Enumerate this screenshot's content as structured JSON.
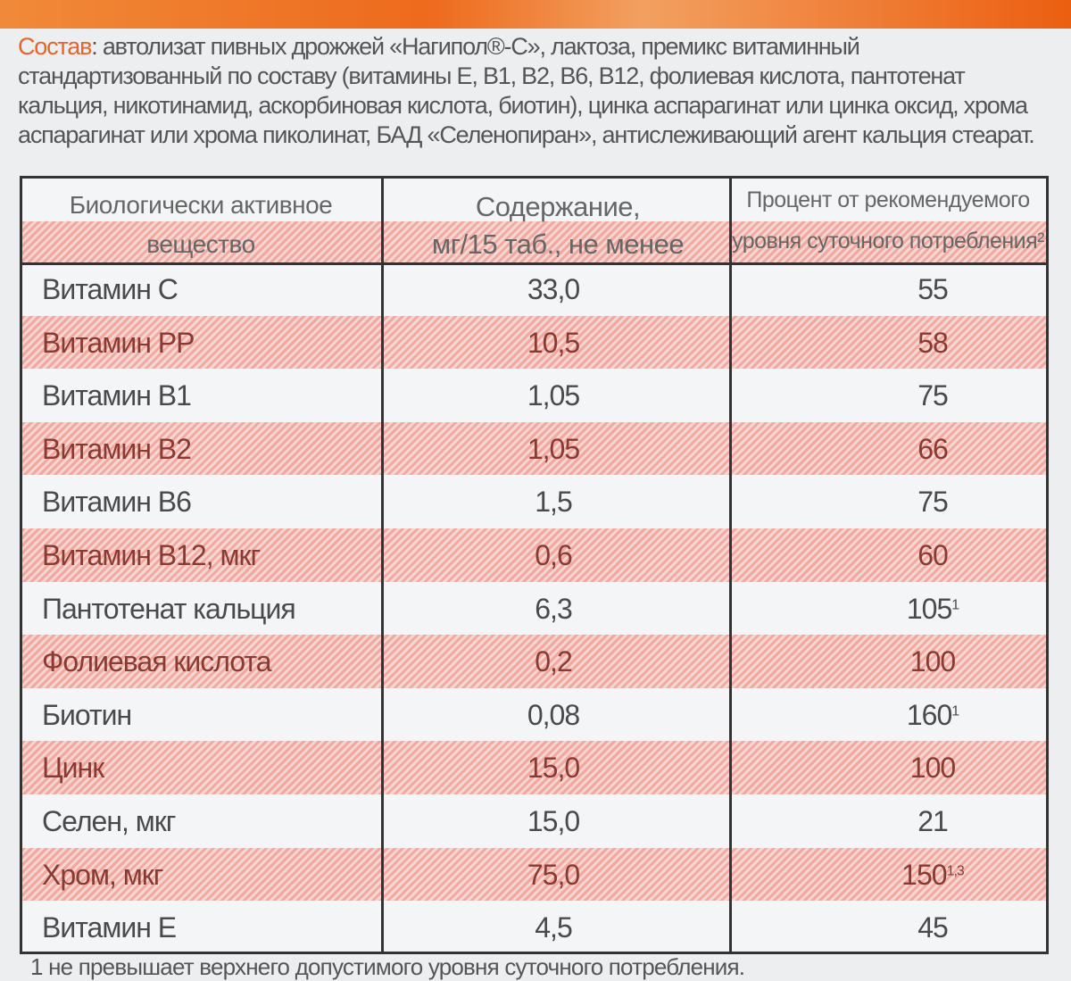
{
  "composition": {
    "label": "Состав",
    "text": ": автолизат пивных дрожжей «Нагипол®-С», лактоза, премикс витаминный стандартизованный по составу (витамины Е, В1, В2, В6, В12, фолиевая кислота, пантотенат кальция, никотинамид, аскорбиновая кислота, биотин), цинка аспарагинат или цинка оксид, хрома аспарагинат или хрома пиколинат, БАД «Селенопиран», антислеживающий агент кальция стеарат."
  },
  "table": {
    "headers": [
      {
        "line1": "Биологически активное",
        "line2": "вещество"
      },
      {
        "line1": "Содержание,",
        "line2": "мг/15 таб., не менее"
      },
      {
        "line1": "Процент от рекомендуемого",
        "line2": "уровня  суточного потребления²"
      }
    ],
    "rows": [
      {
        "name": "Витамин С",
        "amount": "33,0",
        "percent": "55",
        "note": ""
      },
      {
        "name": "Витамин РР",
        "amount": "10,5",
        "percent": "58",
        "note": ""
      },
      {
        "name": "Витамин В1",
        "amount": "1,05",
        "percent": "75",
        "note": ""
      },
      {
        "name": "Витамин В2",
        "amount": "1,05",
        "percent": "66",
        "note": ""
      },
      {
        "name": "Витамин В6",
        "amount": "1,5",
        "percent": "75",
        "note": ""
      },
      {
        "name": "Витамин В12, мкг",
        "amount": "0,6",
        "percent": "60",
        "note": ""
      },
      {
        "name": "Пантотенат кальция",
        "amount": "6,3",
        "percent": "105",
        "note": "1"
      },
      {
        "name": "Фолиевая кислота",
        "amount": "0,2",
        "percent": "100",
        "note": ""
      },
      {
        "name": "Биотин",
        "amount": "0,08",
        "percent": "160",
        "note": "1"
      },
      {
        "name": "Цинк",
        "amount": "15,0",
        "percent": "100",
        "note": ""
      },
      {
        "name": "Селен, мкг",
        "amount": "15,0",
        "percent": "21",
        "note": ""
      },
      {
        "name": "Хром, мкг",
        "amount": "75,0",
        "percent": "150",
        "note": "1,3"
      },
      {
        "name": "Витамин Е",
        "amount": "4,5",
        "percent": "45",
        "note": ""
      }
    ]
  },
  "footnote": "1 не превышает верхнего допустимого уровня суточного потребления."
}
